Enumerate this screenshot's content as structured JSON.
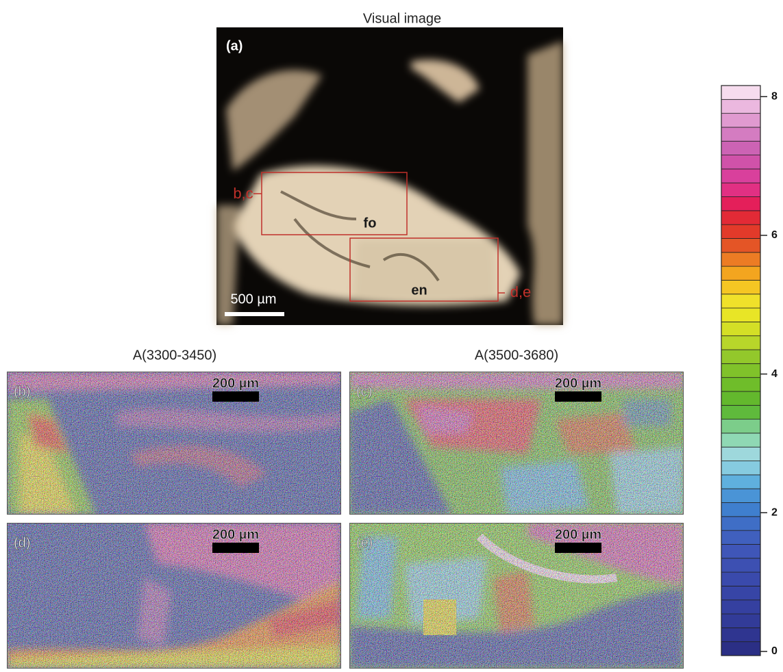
{
  "visual": {
    "title": "Visual image",
    "label": "(a)",
    "scale_label": "500 µm",
    "box_bc": "b,c",
    "box_de": "d,e",
    "mineral_fo": "fo",
    "mineral_en": "en"
  },
  "maps": [
    {
      "title": "A(3300-3450)",
      "label": "(b)",
      "scale_label": "200 µm"
    },
    {
      "title": "A(3500-3680)",
      "label": "(c)",
      "scale_label": "200 µm"
    },
    {
      "label": "(d)",
      "scale_label": "200 µm"
    },
    {
      "label": "(e)",
      "scale_label": "200 µm"
    }
  ],
  "colorbar": {
    "range": [
      -0.06,
      8.16
    ],
    "ticks": [
      0,
      2,
      4,
      6,
      8
    ],
    "colors": [
      "#2b2f85",
      "#2f3590",
      "#323b98",
      "#3540a0",
      "#3745a6",
      "#3a4aac",
      "#3d50b2",
      "#3f56b8",
      "#4060be",
      "#3f6ec6",
      "#3f7fce",
      "#4a94d6",
      "#5fb0de",
      "#86cbe0",
      "#9ed8dc",
      "#8fd8b4",
      "#7ccd8a",
      "#5fba3c",
      "#63b82d",
      "#6fbd2a",
      "#80c22a",
      "#93c82b",
      "#b8d62a",
      "#d4df26",
      "#e8e526",
      "#f0e12a",
      "#f5c623",
      "#f3a51f",
      "#ec7c24",
      "#e45526",
      "#e23a2a",
      "#e22a36",
      "#e41f5a",
      "#e13083",
      "#d9409c",
      "#d052a9",
      "#cc63b4",
      "#d47cc1",
      "#e09ad0",
      "#ebb8df",
      "#f6dcee"
    ]
  }
}
